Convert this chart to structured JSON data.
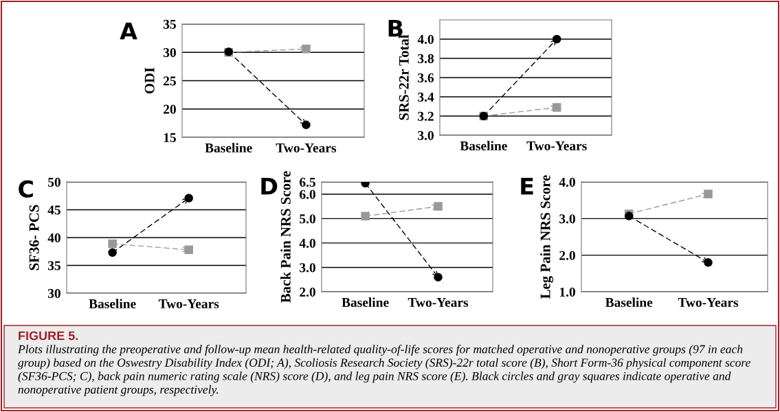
{
  "chart_data": [
    {
      "type": "line",
      "title": "A",
      "ylabel": "ODI",
      "categories": [
        "Baseline",
        "Two-Years"
      ],
      "ylim": [
        15,
        35
      ],
      "yticks": [
        15,
        20,
        25,
        30,
        35
      ],
      "grid": "y",
      "line_style": "dashed",
      "series": [
        {
          "color": "#000000",
          "marker": "circle",
          "values": [
            30.1,
            17.2
          ]
        },
        {
          "color": "#999999",
          "marker": "square",
          "values": [
            30.0,
            30.6
          ]
        }
      ]
    },
    {
      "type": "line",
      "title": "B",
      "ylabel": "SRS-22r Total",
      "categories": [
        "Baseline",
        "Two-Years"
      ],
      "ylim": [
        3.0,
        4.2
      ],
      "yticks": [
        {
          "value": 3.0,
          "label": "3.0"
        },
        {
          "value": 3.2,
          "label": "3.2"
        },
        {
          "value": 3.4,
          "label": "3.4"
        },
        {
          "value": 3.6,
          "label": "3.6"
        },
        {
          "value": 3.8,
          "label": "3.8"
        },
        {
          "value": 4.0,
          "label": "4.0"
        }
      ],
      "grid": "y",
      "line_style": "dashed",
      "series": [
        {
          "color": "#000000",
          "marker": "circle",
          "values": [
            3.2,
            4.0
          ]
        },
        {
          "color": "#999999",
          "marker": "square",
          "values": [
            3.2,
            3.29
          ]
        }
      ]
    },
    {
      "type": "line",
      "title": "C",
      "ylabel": "SF36- PCS",
      "categories": [
        "Baseline",
        "Two-Years"
      ],
      "ylim": [
        30,
        50
      ],
      "yticks": [
        30,
        35,
        40,
        45,
        50
      ],
      "grid": "y",
      "line_style": "dashed",
      "series": [
        {
          "color": "#000000",
          "marker": "circle",
          "values": [
            37.3,
            47.1
          ]
        },
        {
          "color": "#999999",
          "marker": "square",
          "values": [
            38.9,
            37.8
          ]
        }
      ]
    },
    {
      "type": "line",
      "title": "D",
      "ylabel": "Back Pain NRS Score",
      "categories": [
        "Baseline",
        "Two-Years"
      ],
      "ylim": [
        2.0,
        6.5
      ],
      "yticks": [
        {
          "value": 2.0,
          "label": "2.0"
        },
        {
          "value": 3.0,
          "label": "3.0"
        },
        {
          "value": 4.0,
          "label": "4.0"
        },
        {
          "value": 5.0,
          "label": "5.0"
        },
        {
          "value": 6.0,
          "label": "6.0"
        },
        {
          "value": 6.5,
          "label": "6.5"
        }
      ],
      "grid": "y",
      "line_style": "dashed",
      "series": [
        {
          "color": "#000000",
          "marker": "circle",
          "values": [
            6.45,
            2.6
          ]
        },
        {
          "color": "#999999",
          "marker": "square",
          "values": [
            5.1,
            5.5
          ]
        }
      ]
    },
    {
      "type": "line",
      "title": "E",
      "ylabel": "Leg Pain NRS Score",
      "categories": [
        "Baseline",
        "Two-Years"
      ],
      "ylim": [
        1.0,
        4.0
      ],
      "yticks": [
        {
          "value": 1.0,
          "label": "1.0"
        },
        {
          "value": 2.0,
          "label": "2.0"
        },
        {
          "value": 3.0,
          "label": "3.0"
        },
        {
          "value": 4.0,
          "label": "4.0"
        }
      ],
      "grid": "y",
      "line_style": "dashed",
      "series": [
        {
          "color": "#000000",
          "marker": "circle",
          "values": [
            3.07,
            1.8
          ]
        },
        {
          "color": "#999999",
          "marker": "square",
          "values": [
            3.13,
            3.67
          ]
        }
      ],
      "annotations": [
        "FIGURE 5.",
        "Plots illustrating the preoperative and follow-up mean health-related quality-of-life scores for matched operative and nonoperative groups (97 in each group) based on the Oswestry Disability Index (ODI; A), Scoliosis Research Society (SRS)-22r total score (B), Short Form-36 physical component score (SF36-PCS; C), back pain numeric rating scale (NRS) score (D), and leg pain NRS score (E). Black circles and gray squares indicate operative and nonoperative patient groups, respectively."
      ]
    }
  ]
}
